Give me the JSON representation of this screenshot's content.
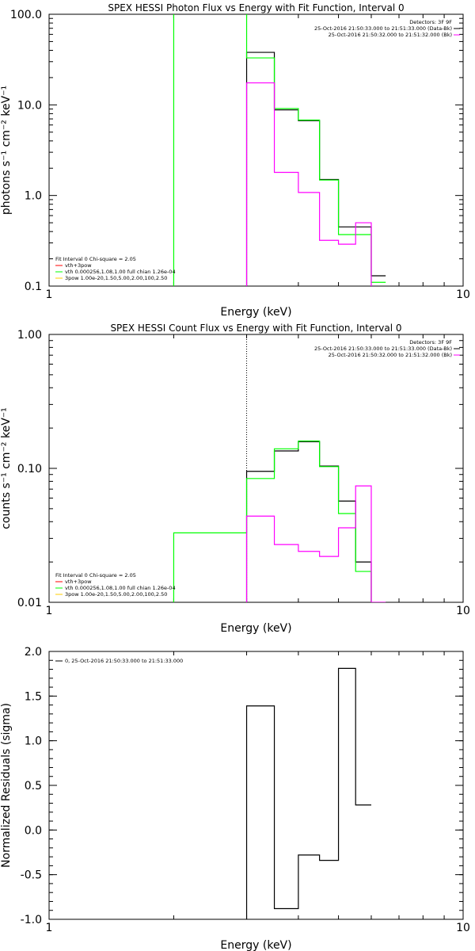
{
  "chart_data": [
    {
      "type": "line",
      "title": "SPEX HESSI Photon Flux vs Energy with Fit Function, Interval 0",
      "xlabel": "Energy (keV)",
      "ylabel": "photons s⁻¹ cm⁻² keV⁻¹",
      "xscale": "log",
      "yscale": "log",
      "xlim": [
        1,
        10
      ],
      "ylim": [
        0.1,
        100
      ],
      "x_ticks": [
        1,
        10
      ],
      "x_tick_labels": [
        "1",
        "10"
      ],
      "y_ticks": [
        0.1,
        1,
        10,
        100
      ],
      "y_tick_labels": [
        "0.1",
        "1.0",
        "10.0",
        "100.0"
      ],
      "legend_top_right": [
        {
          "text": "Detectors: 3F 9F",
          "color": "#000000"
        },
        {
          "text": "25-Oct-2016 21:50:33.000 to 21:51:33.000 (Data-Bk)",
          "color": "#000000"
        },
        {
          "text": "25-Oct-2016 21:50:32.000 to 21:51:32.000 (Bk)",
          "color": "#ff00ff"
        }
      ],
      "legend_bottom_left": [
        {
          "text": "Fit Interval  0   Chi-square = 2.05",
          "color": "#000000"
        },
        {
          "text": "vth+3pow",
          "color": "#ff0000"
        },
        {
          "text": "vth 0.000256,1.08,1.00  full chian 1.26e-04",
          "color": "#00ff00"
        },
        {
          "text": "3pow 1.00e-20,1.50,5.00,2.00,100,2.50",
          "color": "#ffcc00"
        }
      ],
      "vlines": [
        {
          "x": 3.0,
          "color": "#ff00ff",
          "style": "dotted"
        }
      ],
      "series": [
        {
          "color": "#000000",
          "edges": [
            3.0,
            3.5,
            4.0,
            4.5,
            5.0,
            5.5,
            6.0,
            6.5
          ],
          "values": [
            38,
            8.8,
            6.7,
            1.5,
            0.45,
            0.45,
            0.13
          ]
        },
        {
          "color": "#00ff00",
          "edges": [
            2.0,
            3.0,
            3.5,
            4.0,
            4.5,
            5.0,
            5.5,
            6.0,
            6.5
          ],
          "values": [
            130,
            33,
            9.1,
            6.8,
            1.48,
            0.37,
            0.37,
            0.11
          ]
        },
        {
          "color": "#ff00ff",
          "edges": [
            3.0,
            3.5,
            4.0,
            4.5,
            5.0,
            5.5,
            6.0,
            6.5
          ],
          "values": [
            17.5,
            1.8,
            1.08,
            0.32,
            0.29,
            0.5,
            0.095
          ]
        }
      ]
    },
    {
      "type": "line",
      "title": "SPEX HESSI Count Flux vs Energy with Fit Function, Interval 0",
      "xlabel": "Energy (keV)",
      "ylabel": "counts s⁻¹ cm⁻² keV⁻¹",
      "xscale": "log",
      "yscale": "log",
      "xlim": [
        1,
        10
      ],
      "ylim": [
        0.01,
        1.0
      ],
      "x_ticks": [
        1,
        10
      ],
      "x_tick_labels": [
        "1",
        "10"
      ],
      "y_ticks": [
        0.01,
        0.1,
        1.0
      ],
      "y_tick_labels": [
        "0.01",
        "0.10",
        "1.00"
      ],
      "legend_top_right": [
        {
          "text": "Detectors: 3F 9F",
          "color": "#000000"
        },
        {
          "text": "25-Oct-2016 21:50:33.000 to 21:51:33.000 (Data-Bk)",
          "color": "#000000"
        },
        {
          "text": "25-Oct-2016 21:50:32.000 to 21:51:32.000 (Bk)",
          "color": "#ff00ff"
        }
      ],
      "legend_bottom_left": [
        {
          "text": "Fit Interval  0   Chi-square = 2.05",
          "color": "#000000"
        },
        {
          "text": "vth+3pow",
          "color": "#ff0000"
        },
        {
          "text": "vth 0.000256,1.08,1.00  full chian 1.26e-04",
          "color": "#00ff00"
        },
        {
          "text": "3pow 1.00e-20,1.50,5.00,2.00,100,2.50",
          "color": "#ffcc00"
        }
      ],
      "vlines": [
        {
          "x": 3.0,
          "color": "#000000",
          "style": "dotted"
        }
      ],
      "series": [
        {
          "color": "#000000",
          "edges": [
            3.0,
            3.5,
            4.0,
            4.5,
            5.0,
            5.5,
            6.0,
            6.5
          ],
          "values": [
            0.095,
            0.135,
            0.158,
            0.104,
            0.057,
            0.02,
            0.0085
          ]
        },
        {
          "color": "#00ff00",
          "edges": [
            2.0,
            3.0,
            3.5,
            4.0,
            4.5,
            5.0,
            5.5,
            6.0,
            6.5
          ],
          "values": [
            0.033,
            0.084,
            0.14,
            0.16,
            0.103,
            0.046,
            0.017,
            0.009
          ]
        },
        {
          "color": "#ff00ff",
          "edges": [
            3.0,
            3.5,
            4.0,
            4.5,
            5.0,
            5.5,
            6.0,
            6.5
          ],
          "values": [
            0.044,
            0.027,
            0.024,
            0.022,
            0.036,
            0.074,
            0.01
          ]
        }
      ]
    },
    {
      "type": "line",
      "title": "",
      "xlabel": "Energy (keV)",
      "ylabel": "Normalized Residuals (sigma)",
      "xscale": "log",
      "yscale": "linear",
      "xlim": [
        1,
        10
      ],
      "ylim": [
        -1.0,
        2.0
      ],
      "x_ticks": [
        1,
        10
      ],
      "x_tick_labels": [
        "1",
        "10"
      ],
      "y_ticks": [
        -1.0,
        -0.5,
        0.0,
        0.5,
        1.0,
        1.5,
        2.0
      ],
      "y_tick_labels": [
        "-1.0",
        "-0.5",
        "0.0",
        "0.5",
        "1.0",
        "1.5",
        "2.0"
      ],
      "legend_top_left": [
        {
          "text": "0, 25-Oct-2016 21:50:33.000 to 21:51:33.000",
          "color": "#000000"
        }
      ],
      "series": [
        {
          "color": "#000000",
          "edges": [
            3.0,
            3.5,
            4.0,
            4.5,
            5.0,
            5.5,
            6.0
          ],
          "values": [
            1.39,
            -0.88,
            -0.28,
            -0.34,
            1.81,
            0.28
          ]
        }
      ]
    }
  ]
}
